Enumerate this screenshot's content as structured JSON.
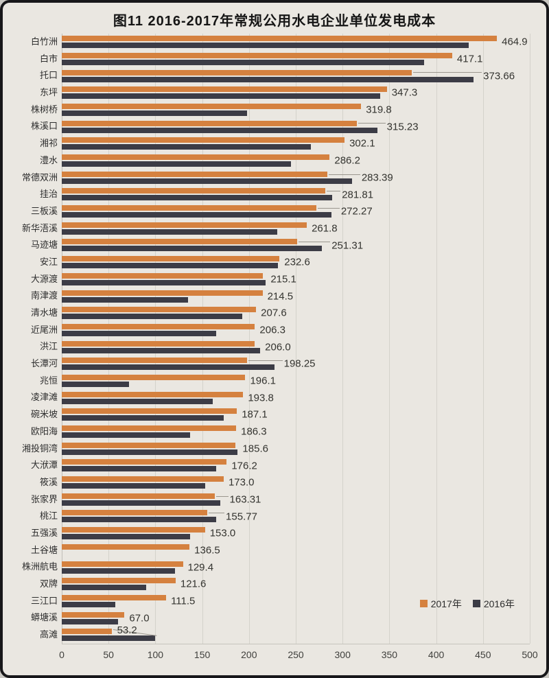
{
  "title": "图11 2016-2017年常规公用水电企业单位发电成本",
  "chart_data": {
    "type": "bar",
    "orientation": "horizontal",
    "title": "图11 2016-2017年常规公用水电企业单位发电成本",
    "xlabel": "",
    "ylabel": "",
    "axis_min": 0,
    "axis_max": 500,
    "axis_ticks": [
      0,
      50,
      100,
      150,
      200,
      250,
      300,
      350,
      400,
      450,
      500
    ],
    "grid": true,
    "legend_position": "bottom-right",
    "series_legend": [
      {
        "label": "2017年",
        "color": "#d5813f"
      },
      {
        "label": "2016年",
        "color": "#3c3c46"
      }
    ],
    "categories": [
      "白竹洲",
      "白市",
      "托口",
      "东坪",
      "株树桥",
      "株溪口",
      "湘祁",
      "澧水",
      "常德双洲",
      "挂治",
      "三板溪",
      "新华浯溪",
      "马迹塘",
      "安江",
      "大源渡",
      "南津渡",
      "清水塘",
      "近尾洲",
      "洪江",
      "长潭河",
      "兆恒",
      "凌津滩",
      "碗米坡",
      "欧阳海",
      "湘投铜湾",
      "大洑潭",
      "筱溪",
      "张家界",
      "桃江",
      "五强溪",
      "土谷塘",
      "株洲航电",
      "双牌",
      "三江口",
      "蟒塘溪",
      "高滩"
    ],
    "series": [
      {
        "name": "2017年",
        "values": [
          464.9,
          417.1,
          373.66,
          347.3,
          319.8,
          315.23,
          302.1,
          286.2,
          283.39,
          281.81,
          272.27,
          261.8,
          251.31,
          232.6,
          215.1,
          214.5,
          207.6,
          206.3,
          206.0,
          198.25,
          196.1,
          193.8,
          187.1,
          186.3,
          185.6,
          176.2,
          173.0,
          163.31,
          155.77,
          153.0,
          136.5,
          129.4,
          121.6,
          111.5,
          67.0,
          53.2
        ]
      },
      {
        "name": "2016年",
        "values": [
          435,
          387,
          440,
          340,
          198,
          337,
          266,
          245,
          310,
          289,
          288,
          230,
          278,
          231,
          218,
          135,
          193,
          165,
          212,
          227,
          72,
          161,
          173,
          137,
          188,
          165,
          153,
          169,
          165,
          137,
          0,
          121,
          90,
          57,
          60,
          100
        ],
        "note": "estimated from bar lengths, no data labels printed"
      }
    ],
    "data_labels": [
      "464.9",
      "417.1",
      "373.66",
      "347.3",
      "319.8",
      "315.23",
      "302.1",
      "286.2",
      "283.39",
      "281.81",
      "272.27",
      "261.8",
      "251.31",
      "232.6",
      "215.1",
      "214.5",
      "207.6",
      "206.3",
      "206.0",
      "198.25",
      "196.1",
      "193.8",
      "187.1",
      "186.3",
      "185.6",
      "176.2",
      "173.0",
      "163.31",
      "155.77",
      "153.0",
      "136.5",
      "129.4",
      "121.6",
      "111.5",
      "67.0",
      "53.2"
    ],
    "leader_line_rows": [
      2,
      5,
      8,
      9,
      10,
      12,
      19,
      27,
      28
    ],
    "raised_label_rows": [
      35
    ]
  },
  "colors": {
    "paper": "#eae7e1",
    "frame": "#17171a",
    "bar_2017": "#d5813f",
    "bar_2016": "#3c3c46",
    "gridline": "#d4d2cb",
    "label_text": "#33332f"
  }
}
